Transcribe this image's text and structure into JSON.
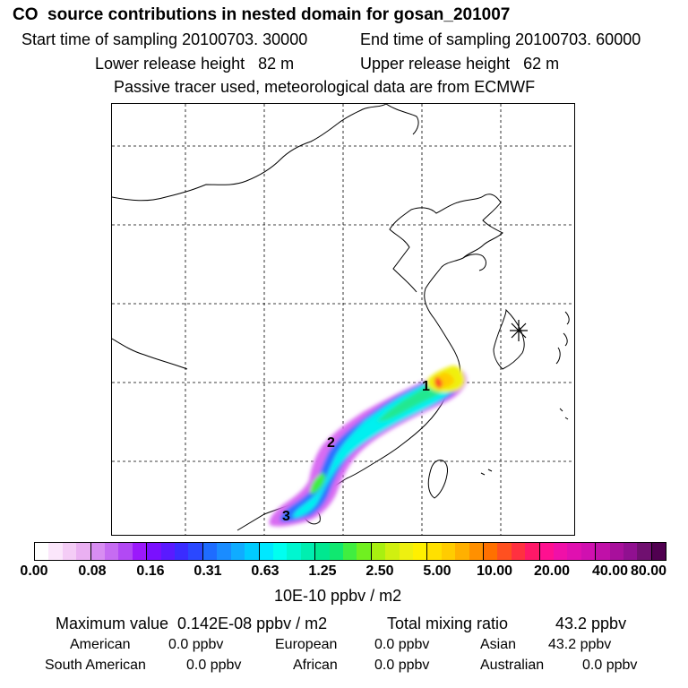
{
  "header": {
    "title": "CO  source contributions in nested domain for gosan_201007",
    "start_label": "Start time of sampling 20100703. 30000",
    "end_label": "End time of sampling 20100703. 60000",
    "lower_label": "Lower release height   82 m",
    "upper_label": "Upper release height   62 m",
    "note": "Passive tracer used, meteorological data are from ECMWF"
  },
  "map": {
    "markers": [
      {
        "label": "1"
      },
      {
        "label": "2"
      },
      {
        "label": "3"
      }
    ],
    "receptor_symbol": "asterisk"
  },
  "colorbar": {
    "colors": [
      "#ffffff",
      "#fbe6fb",
      "#f4ccf6",
      "#eab0f2",
      "#d88df2",
      "#c66cf2",
      "#b249f4",
      "#9b19fb",
      "#7a10fe",
      "#5a1aff",
      "#3a2cff",
      "#2a48ff",
      "#1e6cff",
      "#1a8cff",
      "#10acff",
      "#00ccff",
      "#00e8ff",
      "#00fff0",
      "#00f6d0",
      "#00eeb0",
      "#00e890",
      "#10e870",
      "#40ee40",
      "#70f020",
      "#a8f010",
      "#d0f010",
      "#eef010",
      "#fff000",
      "#ffe000",
      "#ffcc00",
      "#ffb000",
      "#ff9000",
      "#ff7000",
      "#ff5020",
      "#ff3040",
      "#ff1868",
      "#ff1090",
      "#f010a8",
      "#e010b0",
      "#d010b0",
      "#c010a8",
      "#a8109c",
      "#901090",
      "#701070",
      "#500050"
    ],
    "ticks": [
      "0.00",
      "0.08",
      "0.16",
      "0.31",
      "0.63",
      "1.25",
      "2.50",
      "5.00",
      "10.00",
      "20.00",
      "40.00",
      "80.00"
    ],
    "unit": "10E-10 ppbv / m2"
  },
  "stats": {
    "max_label": "Maximum value  0.142E-08 ppbv / m2",
    "total_label": "Total mixing ratio",
    "total_value": "43.2 ppbv",
    "regions": [
      {
        "name": "American",
        "value": "0.0 ppbv"
      },
      {
        "name": "European",
        "value": "0.0 ppbv"
      },
      {
        "name": "Asian",
        "value": "43.2 ppbv"
      },
      {
        "name": "South American",
        "value": "0.0 ppbv"
      },
      {
        "name": "African",
        "value": "0.0 ppbv"
      },
      {
        "name": "Australian",
        "value": "0.0 ppbv"
      }
    ]
  }
}
